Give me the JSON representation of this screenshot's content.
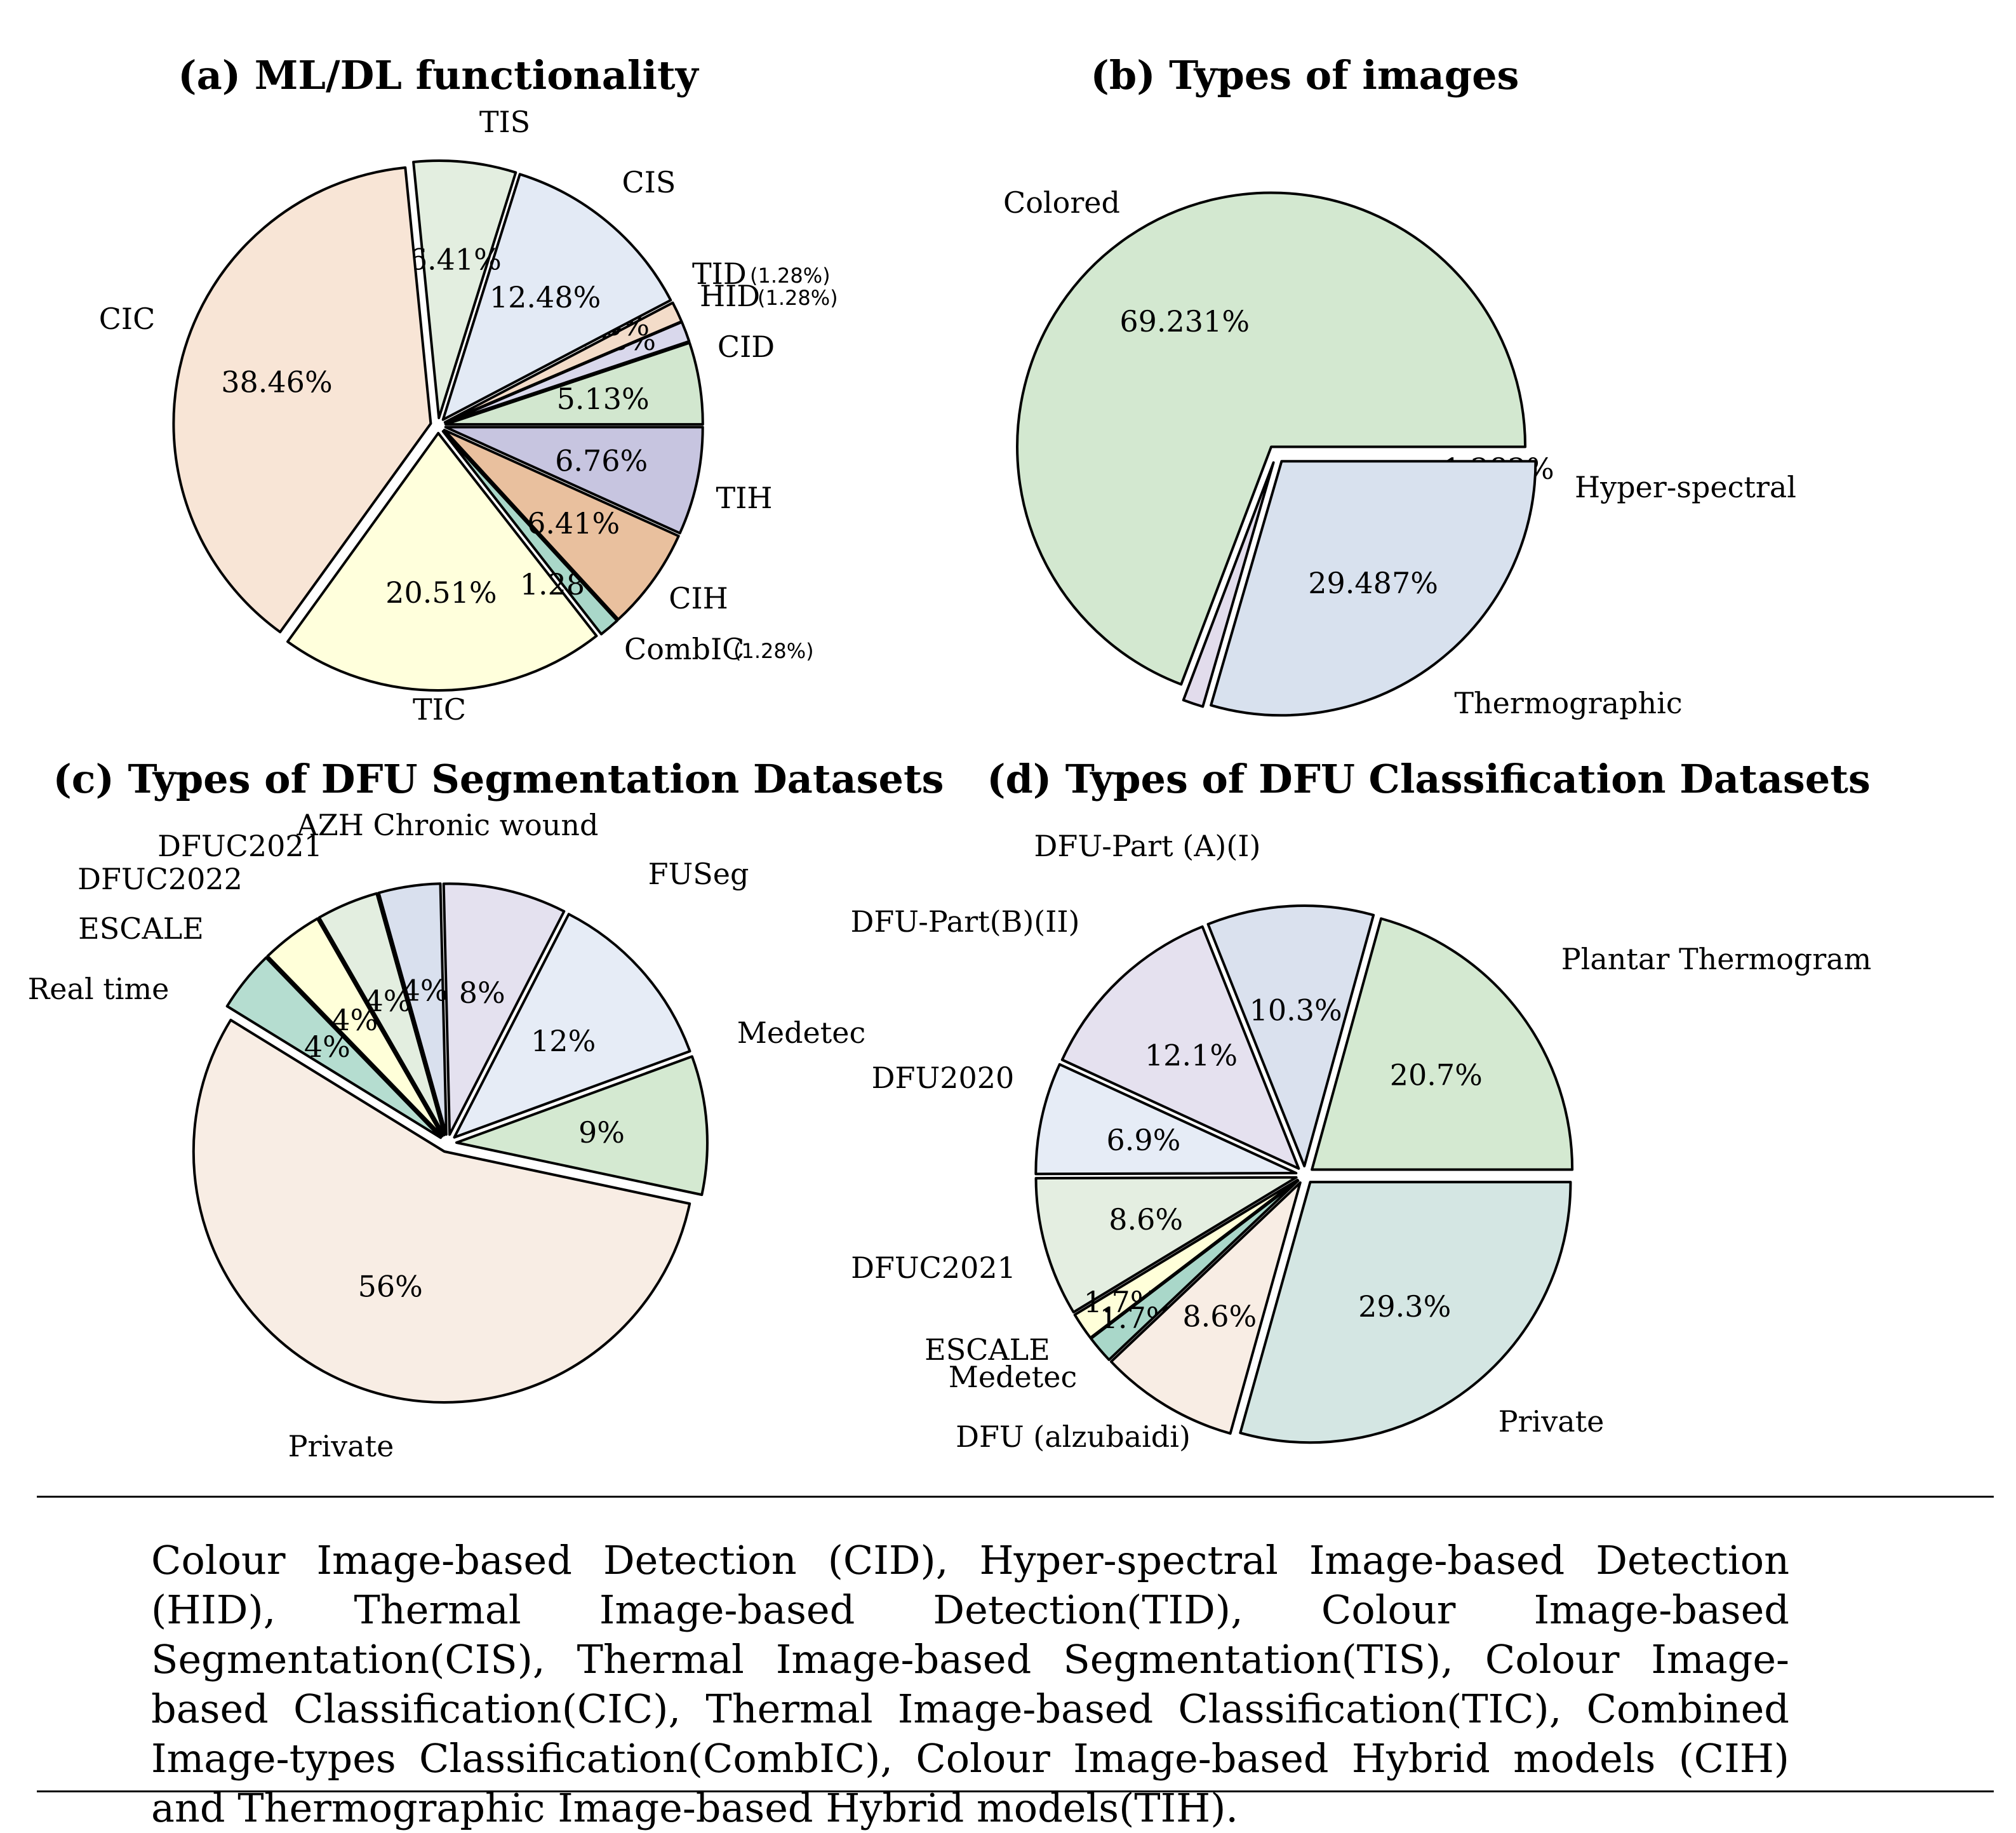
{
  "chart_data": [
    {
      "type": "pie",
      "title": "(a) ML/DL functionality",
      "slices": [
        {
          "label": "CID",
          "value": 5.13,
          "pct_label": "5.13%",
          "color": "#d2e7cf"
        },
        {
          "label": "HID",
          "value": 1.28,
          "pct_label": "1.28%",
          "color": "#d9d8ec",
          "note": "(1.28%)"
        },
        {
          "label": "TID",
          "value": 1.28,
          "pct_label": "1.28%",
          "color": "#f3dcc9",
          "note": "(1.28%)"
        },
        {
          "label": "CIS",
          "value": 12.48,
          "pct_label": "12.48%",
          "color": "#e3eaf5"
        },
        {
          "label": "TIS",
          "value": 6.41,
          "pct_label": "6.41%",
          "color": "#e3eee0"
        },
        {
          "label": "CIC",
          "value": 38.46,
          "pct_label": "38.46%",
          "color": "#f8e5d6"
        },
        {
          "label": "TIC",
          "value": 20.51,
          "pct_label": "20.51%",
          "color": "#ffffdc"
        },
        {
          "label": "CombIC",
          "value": 1.28,
          "pct_label": "1.28",
          "color": "#a9d7c9",
          "note": "(1.28%)"
        },
        {
          "label": "CIH",
          "value": 6.41,
          "pct_label": "6.41%",
          "color": "#e9c09e"
        },
        {
          "label": "TIH",
          "value": 6.76,
          "pct_label": "6.76%",
          "color": "#c7c5e0"
        }
      ]
    },
    {
      "type": "pie",
      "title": "(b) Types of images",
      "slices": [
        {
          "label": "Colored",
          "value": 69.231,
          "pct_label": "69.231%",
          "color": "#d3e8d0"
        },
        {
          "label": "Hyper-spectral",
          "value": 1.282,
          "pct_label": "1.282%",
          "color": "#e2dcec"
        },
        {
          "label": "Thermographic",
          "value": 29.487,
          "pct_label": "29.487%",
          "color": "#d8e1ee"
        }
      ]
    },
    {
      "type": "pie",
      "title": "(c) Types of DFU Segmentation Datasets",
      "slices": [
        {
          "label": "Medetec",
          "value": 9,
          "pct_label": "9%",
          "color": "#d4e9d1"
        },
        {
          "label": "FUSeg",
          "value": 12,
          "pct_label": "12%",
          "color": "#e6ecf6"
        },
        {
          "label": "AZH Chronic wound",
          "value": 8,
          "pct_label": "8%",
          "color": "#e4e1ef"
        },
        {
          "label": "DFUC2021",
          "value": 4,
          "pct_label": "4%",
          "color": "#d9e0ee"
        },
        {
          "label": "DFUC2022",
          "value": 4,
          "pct_label": "4%",
          "color": "#e3eee0"
        },
        {
          "label": "ESCALE",
          "value": 4,
          "pct_label": "4%",
          "color": "#ffffd9"
        },
        {
          "label": "Real time",
          "value": 4,
          "pct_label": "4%",
          "color": "#b5ddd0"
        },
        {
          "label": "Private",
          "value": 56,
          "pct_label": "56%",
          "color": "#f8ede4"
        }
      ]
    },
    {
      "type": "pie",
      "title": "(d) Types of DFU Classification Datasets",
      "slices": [
        {
          "label": "Plantar Thermogram",
          "value": 20.7,
          "pct_label": "20.7%",
          "color": "#d4e9d1"
        },
        {
          "label": "DFU-Part (A)(I)",
          "value": 10.3,
          "pct_label": "10.3%",
          "color": "#dae1ee"
        },
        {
          "label": "DFU-Part(B)(II)",
          "value": 12.1,
          "pct_label": "12.1%",
          "color": "#e5e1ef"
        },
        {
          "label": "DFU2020",
          "value": 6.9,
          "pct_label": "6.9%",
          "color": "#e6ecf6"
        },
        {
          "label": "DFUC2021",
          "value": 8.6,
          "pct_label": "8.6%",
          "color": "#e4eee1"
        },
        {
          "label": "ESCALE",
          "value": 1.7,
          "pct_label": "1.7%",
          "color": "#ffffd9"
        },
        {
          "label": "Medetec",
          "value": 1.7,
          "pct_label": "1.7%",
          "color": "#a9d7c9"
        },
        {
          "label": "DFU (alzubaidi)",
          "value": 8.6,
          "pct_label": "8.6%",
          "color": "#f8ede4"
        },
        {
          "label": "Private",
          "value": 29.3,
          "pct_label": "29.3%",
          "color": "#d4e6e3"
        }
      ]
    }
  ],
  "caption": "Colour Image-based Detection (CID), Hyper-spectral Image-based Detection (HID), Thermal Image-based Detection(TID), Colour Image-based Segmentation(CIS), Thermal Image-based Segmentation(TIS), Colour Image-based Classification(CIC), Thermal Image-based Classification(TIC), Combined Image-types Classification(CombIC), Colour Image-based Hybrid models (CIH) and Thermographic Image-based Hybrid models(TIH).",
  "colors": {
    "stroke": "#000000",
    "background": "#ffffff"
  }
}
